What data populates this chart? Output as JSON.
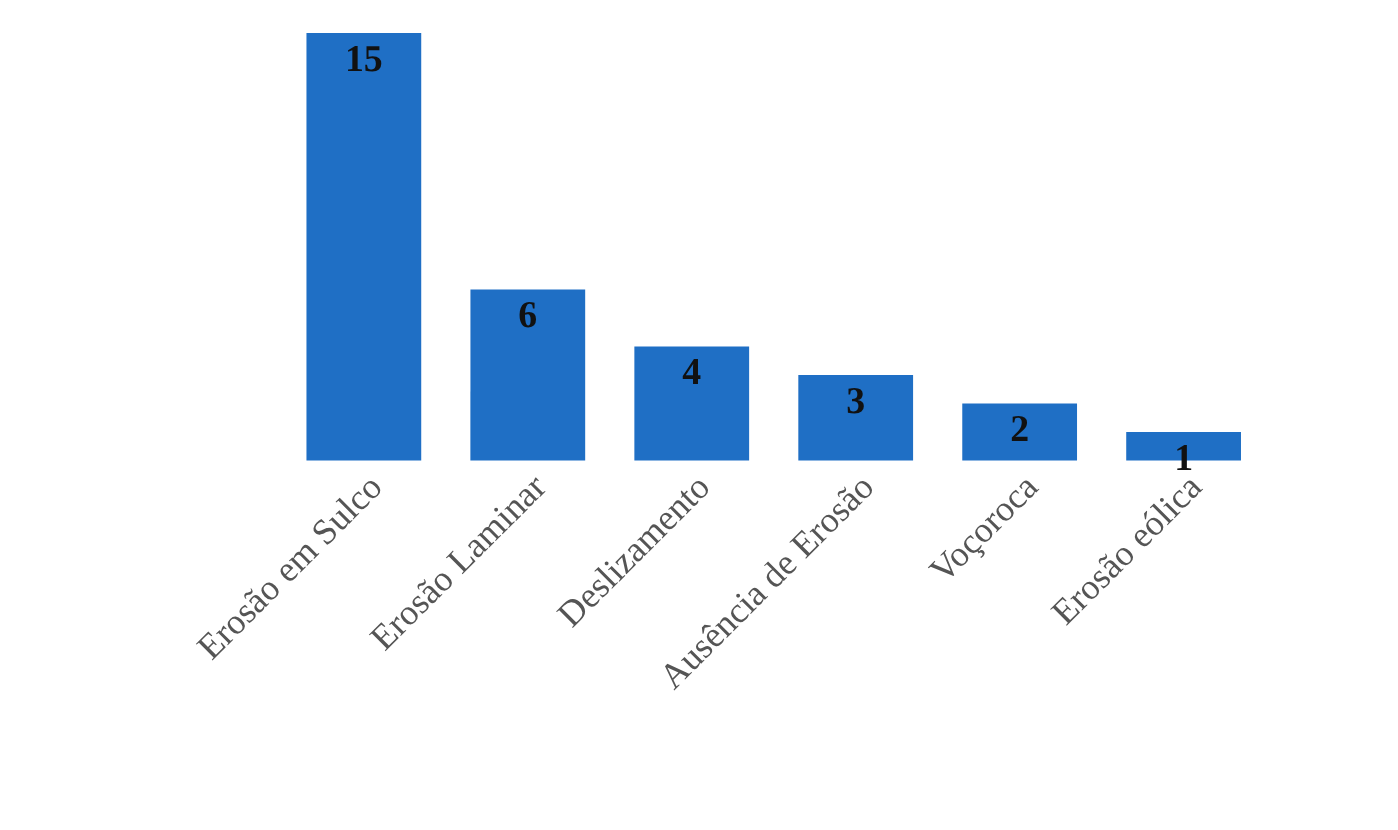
{
  "chart_data": {
    "type": "bar",
    "categories": [
      "Erosão em Sulco",
      "Erosão Laminar",
      "Deslizamento",
      "Ausência de Erosão",
      "Voçoroca",
      "Erosão eólica"
    ],
    "values": [
      15,
      6,
      4,
      3,
      2,
      1
    ],
    "color": "#1f6fc5",
    "data_labels": true
  }
}
